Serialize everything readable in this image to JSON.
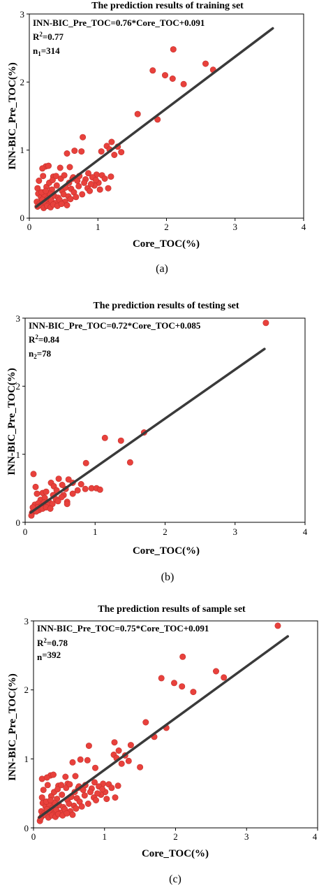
{
  "chart_data": [
    {
      "type": "scatter",
      "panel_label": "(a)",
      "title": "The prediction results of training set",
      "xlabel": "Core_TOC(%)",
      "ylabel": "INN-BIC_Pre_TOC(%)",
      "xlim": [
        0,
        4
      ],
      "ylim": [
        0,
        3
      ],
      "xticks": [
        "0",
        "1",
        "2",
        "3",
        "4"
      ],
      "yticks": [
        "0",
        "1",
        "2",
        "3"
      ],
      "annotation": {
        "equation": "INN-BIC_Pre_TOC=0.76*Core_TOC+0.091",
        "r2_prefix": "R",
        "r2_sup": "2",
        "r2_value": "=0.77",
        "n_prefix": "n",
        "n_sub": "1",
        "n_value": "=314"
      },
      "fit_line": {
        "slope": 0.76,
        "intercept": 0.091,
        "x_range": [
          0.1,
          3.55
        ]
      },
      "grid": false,
      "point_color": "#e8413c",
      "line_color": "#3a3a3a",
      "points": [
        [
          2.1,
          2.48
        ],
        [
          2.57,
          2.27
        ],
        [
          1.8,
          2.17
        ],
        [
          2.68,
          2.18
        ],
        [
          1.98,
          2.1
        ],
        [
          2.09,
          2.05
        ],
        [
          2.25,
          1.97
        ],
        [
          1.58,
          1.53
        ],
        [
          1.87,
          1.45
        ],
        [
          0.78,
          1.19
        ],
        [
          1.2,
          1.12
        ],
        [
          1.13,
          1.06
        ],
        [
          1.29,
          1.05
        ],
        [
          1.17,
          1.01
        ],
        [
          1.34,
          0.97
        ],
        [
          0.76,
          0.98
        ],
        [
          0.66,
          0.99
        ],
        [
          0.55,
          0.95
        ],
        [
          1.24,
          0.93
        ],
        [
          1.05,
          0.98
        ],
        [
          0.24,
          0.76
        ],
        [
          0.28,
          0.77
        ],
        [
          0.45,
          0.74
        ],
        [
          0.59,
          0.75
        ],
        [
          0.19,
          0.73
        ],
        [
          0.86,
          0.66
        ],
        [
          0.98,
          0.64
        ],
        [
          1.06,
          0.63
        ],
        [
          1.19,
          0.61
        ],
        [
          0.2,
          0.62
        ],
        [
          0.35,
          0.61
        ],
        [
          0.14,
          0.55
        ],
        [
          0.63,
          0.58
        ],
        [
          0.7,
          0.55
        ],
        [
          0.82,
          0.57
        ],
        [
          0.92,
          0.6
        ],
        [
          1.01,
          0.52
        ],
        [
          1.1,
          0.58
        ],
        [
          0.12,
          0.44
        ],
        [
          0.25,
          0.46
        ],
        [
          0.33,
          0.42
        ],
        [
          0.4,
          0.48
        ],
        [
          0.48,
          0.4
        ],
        [
          0.53,
          0.45
        ],
        [
          0.61,
          0.43
        ],
        [
          0.72,
          0.47
        ],
        [
          0.85,
          0.44
        ],
        [
          0.95,
          0.48
        ],
        [
          1.03,
          0.42
        ],
        [
          0.13,
          0.36
        ],
        [
          0.17,
          0.31
        ],
        [
          0.22,
          0.34
        ],
        [
          0.27,
          0.29
        ],
        [
          0.3,
          0.36
        ],
        [
          0.36,
          0.33
        ],
        [
          0.42,
          0.3
        ],
        [
          0.5,
          0.35
        ],
        [
          0.57,
          0.32
        ],
        [
          0.65,
          0.38
        ],
        [
          0.77,
          0.35
        ],
        [
          0.88,
          0.4
        ],
        [
          1.15,
          0.44
        ],
        [
          0.11,
          0.24
        ],
        [
          0.15,
          0.21
        ],
        [
          0.19,
          0.27
        ],
        [
          0.23,
          0.23
        ],
        [
          0.28,
          0.2
        ],
        [
          0.32,
          0.26
        ],
        [
          0.38,
          0.22
        ],
        [
          0.44,
          0.27
        ],
        [
          0.52,
          0.24
        ],
        [
          0.6,
          0.28
        ],
        [
          0.68,
          0.31
        ],
        [
          0.12,
          0.17
        ],
        [
          0.16,
          0.19
        ],
        [
          0.21,
          0.15
        ],
        [
          0.26,
          0.18
        ],
        [
          0.31,
          0.16
        ],
        [
          0.35,
          0.2
        ],
        [
          0.41,
          0.18
        ],
        [
          0.47,
          0.21
        ],
        [
          0.55,
          0.19
        ],
        [
          0.18,
          0.38
        ],
        [
          0.24,
          0.4
        ],
        [
          0.29,
          0.52
        ],
        [
          0.34,
          0.56
        ],
        [
          0.39,
          0.62
        ],
        [
          0.46,
          0.58
        ],
        [
          0.51,
          0.63
        ],
        [
          0.58,
          0.52
        ],
        [
          0.64,
          0.6
        ],
        [
          0.73,
          0.62
        ],
        [
          0.8,
          0.52
        ],
        [
          0.9,
          0.5
        ],
        [
          0.97,
          0.56
        ]
      ]
    },
    {
      "type": "scatter",
      "panel_label": "(b)",
      "title": "The prediction results of testing set",
      "xlabel": "Core_TOC(%)",
      "ylabel": "INN-BIC_Pre_TOC(%)",
      "xlim": [
        0,
        4
      ],
      "ylim": [
        0,
        3
      ],
      "xticks": [
        "0",
        "1",
        "2",
        "3",
        "4"
      ],
      "yticks": [
        "0",
        "1",
        "2",
        "3"
      ],
      "annotation": {
        "equation": "INN-BIC_Pre_TOC=0.72*Core_TOC+0.085",
        "r2_prefix": "R",
        "r2_sup": "2",
        "r2_value": "=0.84",
        "n_prefix": "n",
        "n_sub": "2",
        "n_value": "=78"
      },
      "fit_line": {
        "slope": 0.72,
        "intercept": 0.085,
        "x_range": [
          0.08,
          3.42
        ]
      },
      "grid": false,
      "point_color": "#e8413c",
      "line_color": "#3a3a3a",
      "points": [
        [
          3.44,
          2.93
        ],
        [
          1.14,
          1.24
        ],
        [
          1.7,
          1.32
        ],
        [
          1.37,
          1.2
        ],
        [
          1.5,
          0.88
        ],
        [
          0.87,
          0.87
        ],
        [
          0.12,
          0.71
        ],
        [
          0.48,
          0.64
        ],
        [
          0.62,
          0.63
        ],
        [
          0.68,
          0.58
        ],
        [
          0.37,
          0.58
        ],
        [
          0.41,
          0.53
        ],
        [
          0.53,
          0.55
        ],
        [
          0.58,
          0.49
        ],
        [
          0.15,
          0.52
        ],
        [
          0.8,
          0.56
        ],
        [
          0.86,
          0.49
        ],
        [
          0.95,
          0.5
        ],
        [
          1.02,
          0.5
        ],
        [
          1.07,
          0.48
        ],
        [
          0.17,
          0.42
        ],
        [
          0.25,
          0.43
        ],
        [
          0.3,
          0.45
        ],
        [
          0.4,
          0.4
        ],
        [
          0.45,
          0.47
        ],
        [
          0.55,
          0.4
        ],
        [
          0.68,
          0.42
        ],
        [
          0.75,
          0.47
        ],
        [
          0.22,
          0.33
        ],
        [
          0.28,
          0.36
        ],
        [
          0.34,
          0.3
        ],
        [
          0.44,
          0.34
        ],
        [
          0.52,
          0.37
        ],
        [
          0.6,
          0.3
        ],
        [
          0.14,
          0.26
        ],
        [
          0.19,
          0.28
        ],
        [
          0.23,
          0.24
        ],
        [
          0.27,
          0.29
        ],
        [
          0.33,
          0.25
        ],
        [
          0.39,
          0.27
        ],
        [
          0.47,
          0.31
        ],
        [
          0.6,
          0.27
        ],
        [
          0.1,
          0.14
        ],
        [
          0.12,
          0.18
        ],
        [
          0.15,
          0.2
        ],
        [
          0.18,
          0.22
        ],
        [
          0.2,
          0.18
        ],
        [
          0.11,
          0.22
        ],
        [
          0.25,
          0.2
        ],
        [
          0.3,
          0.22
        ],
        [
          0.36,
          0.2
        ],
        [
          0.09,
          0.1
        ],
        [
          0.16,
          0.16
        ]
      ]
    },
    {
      "type": "scatter",
      "panel_label": "(c)",
      "title": "The prediction results of sample set",
      "xlabel": "Core_TOC(%)",
      "ylabel": "INN-BIC_Pre_TOC(%)",
      "xlim": [
        0,
        4
      ],
      "ylim": [
        0,
        3
      ],
      "xticks": [
        "0",
        "1",
        "2",
        "3",
        "4"
      ],
      "yticks": [
        "0",
        "1",
        "2",
        "3"
      ],
      "annotation": {
        "equation": "INN-BIC_Pre_TOC=0.75*Core_TOC+0.091",
        "r2_prefix": "R",
        "r2_sup": "2",
        "r2_value": "=0.78",
        "n_prefix": "n",
        "n_sub": "",
        "n_value": "=392"
      },
      "fit_line": {
        "slope": 0.75,
        "intercept": 0.091,
        "x_range": [
          0.08,
          3.58
        ]
      },
      "grid": false,
      "point_color": "#e8413c",
      "line_color": "#3a3a3a",
      "points": [
        [
          3.44,
          2.93
        ],
        [
          2.1,
          2.48
        ],
        [
          2.57,
          2.27
        ],
        [
          1.8,
          2.17
        ],
        [
          2.68,
          2.18
        ],
        [
          1.98,
          2.1
        ],
        [
          2.09,
          2.05
        ],
        [
          2.25,
          1.97
        ],
        [
          1.58,
          1.53
        ],
        [
          1.87,
          1.45
        ],
        [
          1.7,
          1.32
        ],
        [
          1.14,
          1.24
        ],
        [
          1.37,
          1.2
        ],
        [
          0.78,
          1.19
        ],
        [
          1.2,
          1.12
        ],
        [
          1.13,
          1.06
        ],
        [
          1.29,
          1.05
        ],
        [
          1.17,
          1.01
        ],
        [
          1.34,
          0.97
        ],
        [
          0.76,
          0.98
        ],
        [
          0.66,
          0.99
        ],
        [
          0.55,
          0.95
        ],
        [
          1.24,
          0.93
        ],
        [
          1.5,
          0.88
        ],
        [
          0.87,
          0.87
        ],
        [
          0.24,
          0.76
        ],
        [
          0.28,
          0.77
        ],
        [
          0.45,
          0.74
        ],
        [
          0.59,
          0.75
        ],
        [
          0.12,
          0.71
        ],
        [
          0.19,
          0.73
        ],
        [
          0.86,
          0.66
        ],
        [
          0.98,
          0.64
        ],
        [
          1.06,
          0.63
        ],
        [
          1.19,
          0.61
        ],
        [
          0.48,
          0.64
        ],
        [
          0.2,
          0.62
        ],
        [
          0.35,
          0.61
        ],
        [
          0.14,
          0.55
        ],
        [
          0.63,
          0.58
        ],
        [
          0.7,
          0.55
        ],
        [
          0.82,
          0.57
        ],
        [
          0.92,
          0.6
        ],
        [
          1.01,
          0.52
        ],
        [
          1.1,
          0.58
        ],
        [
          0.12,
          0.44
        ],
        [
          0.25,
          0.46
        ],
        [
          0.33,
          0.42
        ],
        [
          0.4,
          0.48
        ],
        [
          0.48,
          0.4
        ],
        [
          0.53,
          0.45
        ],
        [
          0.61,
          0.43
        ],
        [
          0.72,
          0.47
        ],
        [
          0.85,
          0.44
        ],
        [
          0.95,
          0.48
        ],
        [
          1.03,
          0.42
        ],
        [
          0.13,
          0.36
        ],
        [
          0.17,
          0.31
        ],
        [
          0.22,
          0.34
        ],
        [
          0.27,
          0.29
        ],
        [
          0.3,
          0.36
        ],
        [
          0.36,
          0.33
        ],
        [
          0.42,
          0.3
        ],
        [
          0.5,
          0.35
        ],
        [
          0.57,
          0.32
        ],
        [
          0.65,
          0.38
        ],
        [
          0.77,
          0.35
        ],
        [
          0.88,
          0.4
        ],
        [
          1.15,
          0.44
        ],
        [
          0.11,
          0.24
        ],
        [
          0.15,
          0.21
        ],
        [
          0.19,
          0.27
        ],
        [
          0.23,
          0.23
        ],
        [
          0.28,
          0.2
        ],
        [
          0.32,
          0.26
        ],
        [
          0.38,
          0.22
        ],
        [
          0.44,
          0.27
        ],
        [
          0.52,
          0.24
        ],
        [
          0.6,
          0.28
        ],
        [
          0.68,
          0.31
        ],
        [
          0.12,
          0.17
        ],
        [
          0.16,
          0.19
        ],
        [
          0.21,
          0.15
        ],
        [
          0.26,
          0.18
        ],
        [
          0.31,
          0.16
        ],
        [
          0.35,
          0.2
        ],
        [
          0.41,
          0.18
        ],
        [
          0.47,
          0.21
        ],
        [
          0.55,
          0.19
        ],
        [
          0.18,
          0.38
        ],
        [
          0.24,
          0.4
        ],
        [
          0.29,
          0.52
        ],
        [
          0.34,
          0.56
        ],
        [
          0.39,
          0.62
        ],
        [
          0.46,
          0.58
        ],
        [
          0.51,
          0.63
        ],
        [
          0.58,
          0.52
        ],
        [
          0.64,
          0.6
        ],
        [
          0.73,
          0.62
        ],
        [
          0.8,
          0.52
        ],
        [
          0.9,
          0.5
        ],
        [
          0.97,
          0.56
        ],
        [
          0.09,
          0.1
        ],
        [
          0.1,
          0.14
        ]
      ]
    }
  ]
}
